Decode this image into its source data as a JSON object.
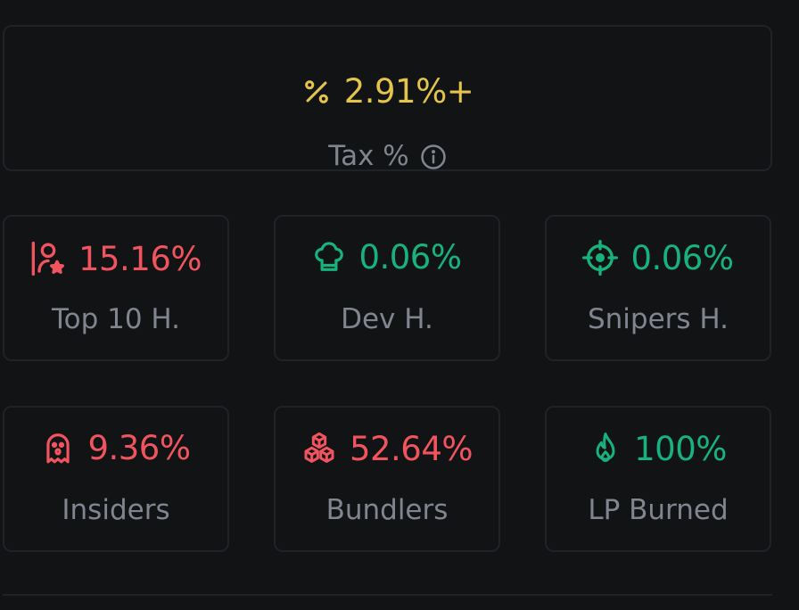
{
  "tax": {
    "value": "2.91%+",
    "label": "Tax %",
    "icon": "percent-icon",
    "info_icon": "info-icon",
    "color": "#e4c44a"
  },
  "stats": [
    {
      "value": "15.16%",
      "label": "Top 10 H.",
      "icon": "user-star-icon",
      "color": "#f0555f"
    },
    {
      "value": "0.06%",
      "label": "Dev H.",
      "icon": "chef-hat-icon",
      "color": "#18b27c"
    },
    {
      "value": "0.06%",
      "label": "Snipers H.",
      "icon": "crosshair-icon",
      "color": "#18b27c"
    },
    {
      "value": "9.36%",
      "label": "Insiders",
      "icon": "ghost-icon",
      "color": "#f0555f"
    },
    {
      "value": "52.64%",
      "label": "Bundlers",
      "icon": "boxes-icon",
      "color": "#f0555f"
    },
    {
      "value": "100%",
      "label": "LP Burned",
      "icon": "flame-icon",
      "color": "#18b27c"
    }
  ],
  "colors": {
    "background": "#111315",
    "border": "#1f2227",
    "label": "#80858f",
    "positive": "#18b27c",
    "negative": "#f0555f",
    "warning": "#e4c44a"
  }
}
